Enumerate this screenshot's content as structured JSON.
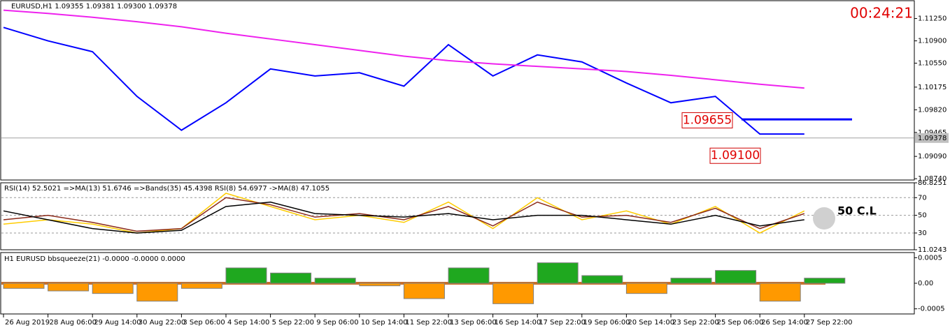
{
  "chart_data": [
    {
      "type": "line",
      "header": "EURUSD,H1  1.09355 1.09381 1.09300 1.09378",
      "timer": "00:24:21",
      "categories": [
        "26 Aug 2019",
        "28 Aug 06:00",
        "29 Aug 14:00",
        "30 Aug 22:00",
        "3 Sep 06:00",
        "4 Sep 14:00",
        "5 Sep 22:00",
        "9 Sep 06:00",
        "10 Sep 14:00",
        "11 Sep 22:00",
        "13 Sep 06:00",
        "16 Sep 14:00",
        "17 Sep 22:00",
        "19 Sep 06:00",
        "20 Sep 14:00",
        "23 Sep 22:00",
        "25 Sep 06:00",
        "26 Sep 14:00",
        "27 Sep 22:00"
      ],
      "series": [
        {
          "color": "#0000ff",
          "values": [
            1.1111,
            1.109,
            1.1073,
            1.1003,
            1.095,
            1.0993,
            1.1046,
            1.1035,
            1.104,
            1.1019,
            1.1084,
            1.1035,
            1.1068,
            1.1057,
            1.1024,
            1.0993,
            1.1003,
            1.0944,
            1.0944
          ]
        },
        {
          "color": "#ee22ee",
          "values": [
            1.1138,
            1.1133,
            1.1127,
            1.112,
            1.1112,
            1.1102,
            1.1093,
            1.1084,
            1.1075,
            1.1066,
            1.1059,
            1.1054,
            1.105,
            1.1046,
            1.1042,
            1.1036,
            1.1029,
            1.1022,
            1.1016
          ]
        }
      ],
      "ylim": [
        1.0872,
        1.1154
      ],
      "yticks": [
        {
          "value": 1.1125,
          "label": "1.11250"
        },
        {
          "value": 1.109,
          "label": "1.10900"
        },
        {
          "value": 1.1055,
          "label": "1.10550"
        },
        {
          "value": 1.10175,
          "label": "1.10175"
        },
        {
          "value": 1.0982,
          "label": "1.09820"
        },
        {
          "value": 1.09465,
          "label": "1.09465"
        },
        {
          "value": 1.0909,
          "label": "1.09090"
        },
        {
          "value": 1.0874,
          "label": "1.08740"
        }
      ],
      "last_price": {
        "value": 1.09378,
        "label": "1.09378"
      },
      "levels": [
        {
          "value": 1.0967,
          "color": "#0000ff"
        }
      ],
      "annotations": [
        {
          "value": 1.09655,
          "label": "1.09655"
        },
        {
          "value": 1.091,
          "label": "1.09100"
        }
      ]
    },
    {
      "type": "line",
      "header": "RSI(14) 52.5021  =>MA(13) 51.6746  =>Bands(35) 45.4398  RSI(8) 54.6977  ->MA(8) 47.1055",
      "note": "50 C.L",
      "series": [
        {
          "color": "#ffcc00",
          "values": [
            40,
            45,
            40,
            30,
            35,
            75,
            60,
            45,
            50,
            42,
            65,
            35,
            70,
            45,
            55,
            40,
            60,
            30,
            55
          ]
        },
        {
          "color": "#8b2a1a",
          "values": [
            45,
            50,
            42,
            32,
            35,
            70,
            62,
            48,
            52,
            45,
            60,
            38,
            65,
            48,
            50,
            42,
            58,
            35,
            52
          ]
        },
        {
          "color": "#000000",
          "values": [
            55,
            45,
            35,
            30,
            33,
            60,
            65,
            52,
            50,
            48,
            52,
            45,
            50,
            50,
            45,
            40,
            50,
            38,
            45
          ]
        }
      ],
      "ylim": [
        11.0243,
        86.8251
      ],
      "yticks": [
        86.8251,
        70,
        50,
        30,
        11.0243
      ]
    },
    {
      "type": "bar",
      "header": "H1 EURUSD bbsqueeze(21) -0.0000 -0.0000 0.0000",
      "values": [
        -0.0001,
        -0.00015,
        -0.0002,
        -0.00035,
        -0.0001,
        0.0003,
        0.0002,
        0.0001,
        -5e-05,
        -0.0003,
        0.0003,
        -0.0004,
        0.0004,
        0.00015,
        -0.0002,
        0.0001,
        0.00025,
        -0.00035,
        0.0001
      ],
      "up_color": "#1fa81f",
      "down_color": "#ff9900",
      "ylim": [
        -0.0006,
        0.0006
      ],
      "yticks": [
        0.0005,
        {
          "value": 0,
          "label": "0.00"
        },
        -0.0005
      ]
    }
  ]
}
